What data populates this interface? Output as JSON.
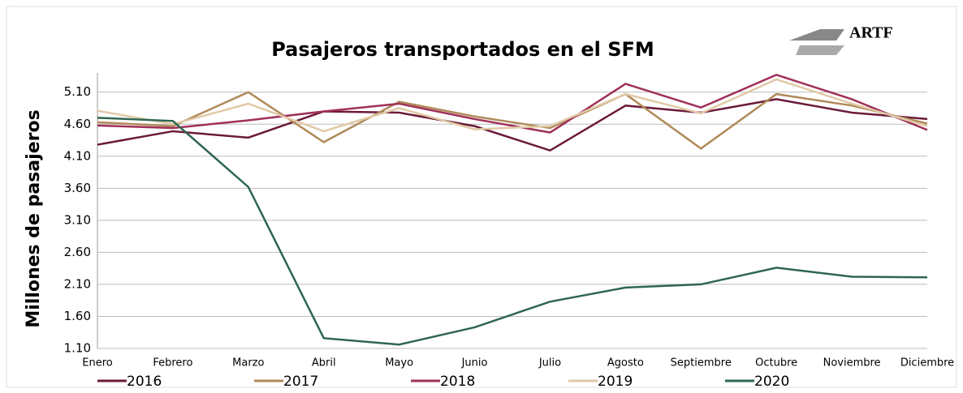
{
  "chart_data": {
    "type": "line",
    "title": "Pasajeros transportados en el SFM",
    "y_label": "Millones de pasajeros",
    "logo": "ARTF",
    "categories": [
      "Enero",
      "Febrero",
      "Marzo",
      "Abril",
      "Mayo",
      "Junio",
      "Julio",
      "Agosto",
      "Septiembre",
      "Octubre",
      "Noviembre",
      "Diciembre"
    ],
    "series": [
      {
        "name": "2016",
        "color": "#6b1a3a",
        "values": [
          4.28,
          4.49,
          4.39,
          4.8,
          4.78,
          4.57,
          4.19,
          4.89,
          4.78,
          4.99,
          4.78,
          4.68
        ]
      },
      {
        "name": "2017",
        "color": "#b08a5a",
        "values": [
          4.63,
          4.57,
          5.1,
          4.32,
          4.95,
          4.72,
          4.54,
          5.07,
          4.22,
          5.07,
          4.89,
          4.61
        ]
      },
      {
        "name": "2018",
        "color": "#a0305a",
        "values": [
          4.58,
          4.54,
          4.66,
          4.8,
          4.92,
          4.68,
          4.47,
          5.23,
          4.86,
          5.37,
          4.99,
          4.51
        ]
      },
      {
        "name": "2019",
        "color": "#e0c9a6",
        "values": [
          4.81,
          4.6,
          4.92,
          4.49,
          4.85,
          4.52,
          4.57,
          5.07,
          4.77,
          5.3,
          4.92,
          4.57
        ]
      },
      {
        "name": "2020",
        "color": "#2e6650",
        "values": [
          4.7,
          4.65,
          3.62,
          1.26,
          1.16,
          1.43,
          1.83,
          2.05,
          2.1,
          2.36,
          2.22,
          2.21
        ]
      }
    ],
    "ylim": [
      1.1,
      5.4
    ],
    "yticks": [
      {
        "value": 1.1,
        "label": "1.10"
      },
      {
        "value": 1.6,
        "label": "1.60"
      },
      {
        "value": 2.1,
        "label": "2.10"
      },
      {
        "value": 2.6,
        "label": "2.60"
      },
      {
        "value": 3.1,
        "label": "3.10"
      },
      {
        "value": 3.6,
        "label": "3.60"
      },
      {
        "value": 4.1,
        "label": "4.10"
      },
      {
        "value": 4.6,
        "label": "4.60"
      },
      {
        "value": 5.1,
        "label": "5.10"
      }
    ],
    "grid": true,
    "legend": "bottom"
  }
}
